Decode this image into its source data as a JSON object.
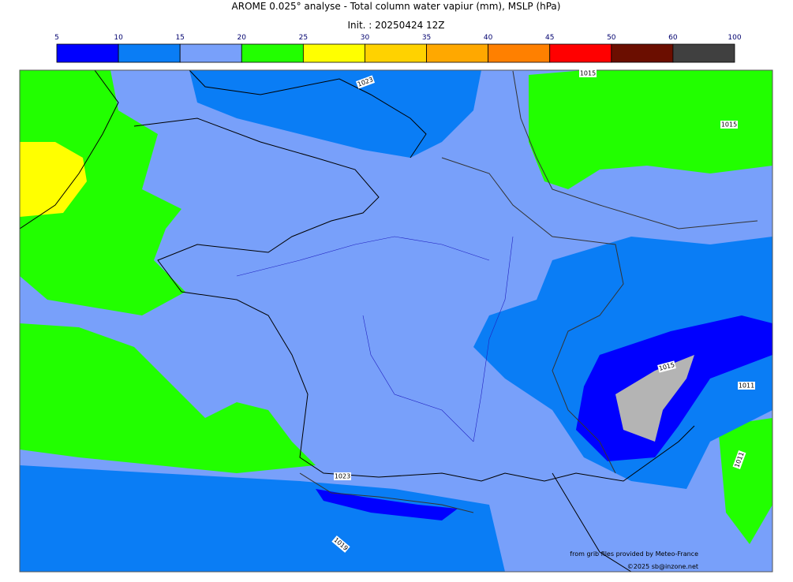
{
  "title": "AROME 0.025° analyse - Total column water vapiur (mm), MSLP (hPa)",
  "subtitle": "Init. : 20250424 12Z",
  "colorbar": {
    "ticks": [
      5,
      10,
      15,
      20,
      25,
      30,
      35,
      40,
      45,
      50,
      60,
      100
    ],
    "colors": [
      "#0000ff",
      "#0a7df5",
      "#78a0fa",
      "#22ff00",
      "#ffff00",
      "#ffd200",
      "#ffa800",
      "#ff8000",
      "#ff0000",
      "#6b0e00",
      "#404040"
    ]
  },
  "isobar_labels": [
    "1023",
    "1015",
    "1015",
    "1015",
    "1011",
    "1011",
    "1023",
    "1019"
  ],
  "credits": [
    "from grib files provided by Meteo-France",
    "©2025 sb@inzone.net"
  ]
}
